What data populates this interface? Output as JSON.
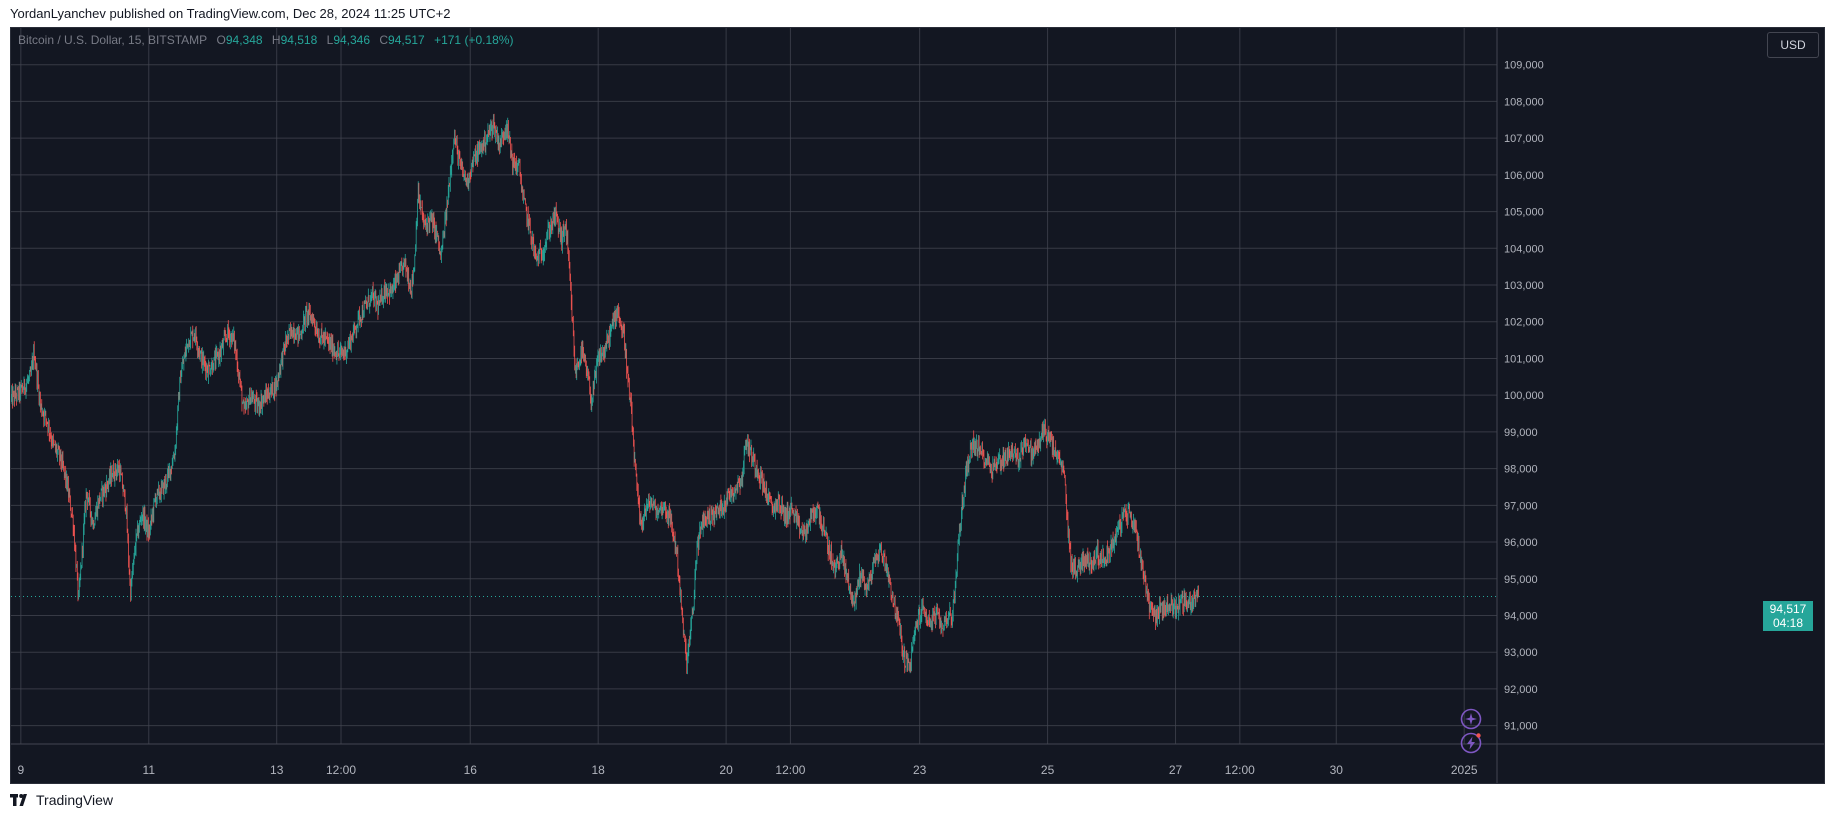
{
  "header": {
    "publisher_line": "YordanLyanchev published on TradingView.com, Dec 28, 2024 11:25 UTC+2"
  },
  "legend": {
    "symbol": "Bitcoin / U.S. Dollar, 15, BITSTAMP",
    "o_label": "O",
    "o_value": "94,348",
    "h_label": "H",
    "h_value": "94,518",
    "l_label": "L",
    "l_value": "94,346",
    "c_label": "C",
    "c_value": "94,517",
    "change": "+171 (+0.18%)"
  },
  "currency_button": "USD",
  "last_price": {
    "value": "94,517",
    "countdown": "04:18"
  },
  "footer": {
    "brand": "TradingView"
  },
  "icons": {
    "brand_logo": "tradingview-logo-icon",
    "spark": "sparkle-icon",
    "flash": "lightning-icon"
  },
  "colors": {
    "background": "#131722",
    "grid": "#434651",
    "up": "#26a69a",
    "down": "#ef5350",
    "text": "#b2b5be",
    "accent": "#7e57c2"
  },
  "chart_data": {
    "type": "candlestick",
    "title": "Bitcoin / U.S. Dollar, 15, BITSTAMP",
    "interval": "15",
    "ylim": [
      90500,
      110000
    ],
    "y_ticks": [
      109000,
      108000,
      107000,
      106000,
      105000,
      104000,
      103000,
      102000,
      101000,
      100000,
      99000,
      98000,
      97000,
      96000,
      95000,
      94000,
      93000,
      92000,
      91000
    ],
    "y_tick_labels": [
      "109,000",
      "108,000",
      "107,000",
      "106,000",
      "105,000",
      "104,000",
      "103,000",
      "102,000",
      "101,000",
      "100,000",
      "99,000",
      "98,000",
      "97,000",
      "96,000",
      "95,000",
      "94,000",
      "93,000",
      "92,000",
      "91,000"
    ],
    "x_ticks": [
      {
        "label": "9",
        "t": 0.55
      },
      {
        "label": "11",
        "t": 2.5
      },
      {
        "label": "13",
        "t": 4.45
      },
      {
        "label": "12:00",
        "t": 5.43
      },
      {
        "label": "16",
        "t": 7.4
      },
      {
        "label": "18",
        "t": 9.35
      },
      {
        "label": "20",
        "t": 11.3
      },
      {
        "label": "12:00",
        "t": 12.28
      },
      {
        "label": "23",
        "t": 14.25
      },
      {
        "label": "25",
        "t": 16.2
      },
      {
        "label": "27",
        "t": 18.15
      },
      {
        "label": "12:00",
        "t": 19.13
      },
      {
        "label": "30",
        "t": 20.6
      },
      {
        "label": "2025",
        "t": 22.55
      }
    ],
    "xlim": [
      0.4,
      23.05
    ],
    "last_close": 94517,
    "price_path": [
      [
        0.4,
        99900
      ],
      [
        0.55,
        100100
      ],
      [
        0.7,
        100500
      ],
      [
        0.75,
        101200
      ],
      [
        0.85,
        99700
      ],
      [
        0.95,
        99300
      ],
      [
        1.05,
        98600
      ],
      [
        1.15,
        98300
      ],
      [
        1.25,
        97600
      ],
      [
        1.35,
        96500
      ],
      [
        1.43,
        94400
      ],
      [
        1.55,
        97400
      ],
      [
        1.65,
        96500
      ],
      [
        1.75,
        97200
      ],
      [
        1.85,
        97500
      ],
      [
        1.95,
        97900
      ],
      [
        2.05,
        98000
      ],
      [
        2.15,
        97000
      ],
      [
        2.22,
        94600
      ],
      [
        2.3,
        96000
      ],
      [
        2.4,
        96800
      ],
      [
        2.5,
        96200
      ],
      [
        2.6,
        97200
      ],
      [
        2.7,
        97400
      ],
      [
        2.8,
        97800
      ],
      [
        2.9,
        98500
      ],
      [
        2.98,
        100500
      ],
      [
        3.1,
        101500
      ],
      [
        3.2,
        101700
      ],
      [
        3.3,
        101000
      ],
      [
        3.4,
        100700
      ],
      [
        3.5,
        100900
      ],
      [
        3.6,
        101200
      ],
      [
        3.7,
        101700
      ],
      [
        3.8,
        101500
      ],
      [
        3.9,
        100200
      ],
      [
        3.95,
        99500
      ],
      [
        4.05,
        100000
      ],
      [
        4.15,
        99700
      ],
      [
        4.25,
        99900
      ],
      [
        4.35,
        100100
      ],
      [
        4.45,
        100300
      ],
      [
        4.5,
        100800
      ],
      [
        4.6,
        101500
      ],
      [
        4.7,
        101800
      ],
      [
        4.8,
        101600
      ],
      [
        4.9,
        102200
      ],
      [
        5.0,
        102100
      ],
      [
        5.1,
        101600
      ],
      [
        5.2,
        101500
      ],
      [
        5.3,
        101300
      ],
      [
        5.4,
        101100
      ],
      [
        5.5,
        101200
      ],
      [
        5.6,
        101600
      ],
      [
        5.7,
        102100
      ],
      [
        5.8,
        102400
      ],
      [
        5.9,
        102700
      ],
      [
        6.0,
        102400
      ],
      [
        6.1,
        102900
      ],
      [
        6.2,
        102800
      ],
      [
        6.3,
        103200
      ],
      [
        6.4,
        103600
      ],
      [
        6.5,
        102900
      ],
      [
        6.55,
        103600
      ],
      [
        6.6,
        105500
      ],
      [
        6.7,
        104600
      ],
      [
        6.8,
        104800
      ],
      [
        6.9,
        104300
      ],
      [
        6.95,
        103700
      ],
      [
        7.05,
        105200
      ],
      [
        7.15,
        107100
      ],
      [
        7.25,
        106200
      ],
      [
        7.35,
        105800
      ],
      [
        7.45,
        106400
      ],
      [
        7.55,
        106700
      ],
      [
        7.65,
        107000
      ],
      [
        7.75,
        107400
      ],
      [
        7.85,
        106800
      ],
      [
        7.95,
        107400
      ],
      [
        8.05,
        106300
      ],
      [
        8.15,
        106200
      ],
      [
        8.2,
        105400
      ],
      [
        8.3,
        104600
      ],
      [
        8.4,
        103700
      ],
      [
        8.5,
        103900
      ],
      [
        8.6,
        104500
      ],
      [
        8.7,
        104900
      ],
      [
        8.8,
        104200
      ],
      [
        8.85,
        104700
      ],
      [
        8.9,
        103600
      ],
      [
        8.95,
        102200
      ],
      [
        9.0,
        100600
      ],
      [
        9.1,
        101200
      ],
      [
        9.2,
        100400
      ],
      [
        9.25,
        99800
      ],
      [
        9.35,
        101000
      ],
      [
        9.45,
        101200
      ],
      [
        9.55,
        101800
      ],
      [
        9.65,
        102400
      ],
      [
        9.7,
        101800
      ],
      [
        9.75,
        101600
      ],
      [
        9.8,
        100400
      ],
      [
        9.85,
        99600
      ],
      [
        9.9,
        98300
      ],
      [
        9.95,
        97200
      ],
      [
        10.0,
        96400
      ],
      [
        10.05,
        96800
      ],
      [
        10.15,
        97100
      ],
      [
        10.25,
        96800
      ],
      [
        10.35,
        97000
      ],
      [
        10.45,
        96600
      ],
      [
        10.55,
        95700
      ],
      [
        10.6,
        94600
      ],
      [
        10.65,
        93500
      ],
      [
        10.7,
        92700
      ],
      [
        10.8,
        94200
      ],
      [
        10.85,
        95800
      ],
      [
        10.95,
        96600
      ],
      [
        11.05,
        96700
      ],
      [
        11.15,
        96800
      ],
      [
        11.25,
        97000
      ],
      [
        11.35,
        97300
      ],
      [
        11.45,
        97500
      ],
      [
        11.55,
        97800
      ],
      [
        11.6,
        98800
      ],
      [
        11.7,
        98300
      ],
      [
        11.8,
        97900
      ],
      [
        11.9,
        97400
      ],
      [
        12.0,
        96900
      ],
      [
        12.1,
        97100
      ],
      [
        12.2,
        96700
      ],
      [
        12.3,
        96900
      ],
      [
        12.4,
        96400
      ],
      [
        12.5,
        96200
      ],
      [
        12.6,
        96700
      ],
      [
        12.7,
        96900
      ],
      [
        12.8,
        96200
      ],
      [
        12.9,
        95600
      ],
      [
        12.95,
        95200
      ],
      [
        13.05,
        95700
      ],
      [
        13.15,
        95000
      ],
      [
        13.25,
        94300
      ],
      [
        13.35,
        95200
      ],
      [
        13.45,
        94700
      ],
      [
        13.55,
        95400
      ],
      [
        13.65,
        95800
      ],
      [
        13.75,
        95300
      ],
      [
        13.85,
        94400
      ],
      [
        13.95,
        93600
      ],
      [
        14.0,
        92900
      ],
      [
        14.1,
        92600
      ],
      [
        14.2,
        93800
      ],
      [
        14.3,
        94200
      ],
      [
        14.4,
        93800
      ],
      [
        14.5,
        94000
      ],
      [
        14.6,
        93700
      ],
      [
        14.7,
        94100
      ],
      [
        14.75,
        93900
      ],
      [
        14.85,
        96200
      ],
      [
        14.95,
        97800
      ],
      [
        15.05,
        98700
      ],
      [
        15.15,
        98500
      ],
      [
        15.25,
        98300
      ],
      [
        15.35,
        98000
      ],
      [
        15.45,
        98200
      ],
      [
        15.55,
        98300
      ],
      [
        15.65,
        98500
      ],
      [
        15.75,
        98200
      ],
      [
        15.85,
        98800
      ],
      [
        15.95,
        98400
      ],
      [
        16.05,
        98600
      ],
      [
        16.15,
        99100
      ],
      [
        16.25,
        98700
      ],
      [
        16.35,
        98300
      ],
      [
        16.45,
        97900
      ],
      [
        16.5,
        96600
      ],
      [
        16.55,
        95500
      ],
      [
        16.65,
        95200
      ],
      [
        16.75,
        95600
      ],
      [
        16.85,
        95400
      ],
      [
        16.95,
        95700
      ],
      [
        17.05,
        95500
      ],
      [
        17.15,
        95800
      ],
      [
        17.25,
        96200
      ],
      [
        17.35,
        96700
      ],
      [
        17.45,
        96800
      ],
      [
        17.55,
        96300
      ],
      [
        17.65,
        95300
      ],
      [
        17.75,
        94300
      ],
      [
        17.85,
        94000
      ],
      [
        17.95,
        94200
      ],
      [
        18.05,
        94300
      ],
      [
        18.15,
        94200
      ],
      [
        18.25,
        94400
      ],
      [
        18.35,
        94300
      ],
      [
        18.45,
        94500
      ],
      [
        18.5,
        94517
      ]
    ]
  }
}
